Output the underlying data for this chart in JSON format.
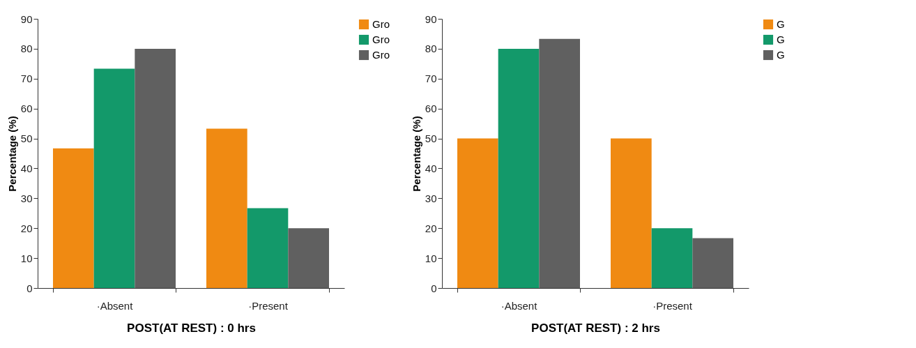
{
  "chart_data": [
    {
      "type": "bar",
      "categories": [
        "·Absent",
        "·Present"
      ],
      "xlabel": "POST(AT REST) : 0 hrs",
      "ylabel": "Percentage (%)",
      "ylim": [
        0,
        90
      ],
      "yticks": [
        0,
        10,
        20,
        30,
        40,
        50,
        60,
        70,
        80,
        90
      ],
      "grid": false,
      "legend": "top right",
      "series": [
        {
          "name": "Gro",
          "color": "#f08a12",
          "values": [
            46.7,
            53.3
          ]
        },
        {
          "name": "Gro",
          "color": "#13996a",
          "values": [
            73.3,
            26.7
          ]
        },
        {
          "name": "Gro",
          "color": "#606060",
          "values": [
            80,
            20
          ]
        }
      ]
    },
    {
      "type": "bar",
      "categories": [
        "·Absent",
        "·Present"
      ],
      "xlabel": "POST(AT REST) : 2 hrs",
      "ylabel": "Percentage (%)",
      "ylim": [
        0,
        90
      ],
      "yticks": [
        0,
        10,
        20,
        30,
        40,
        50,
        60,
        70,
        80,
        90
      ],
      "grid": false,
      "legend": "top right",
      "series": [
        {
          "name": "G",
          "color": "#f08a12",
          "values": [
            50,
            50
          ]
        },
        {
          "name": "G",
          "color": "#13996a",
          "values": [
            80,
            20
          ]
        },
        {
          "name": "G",
          "color": "#606060",
          "values": [
            83.3,
            16.7
          ]
        }
      ]
    }
  ]
}
